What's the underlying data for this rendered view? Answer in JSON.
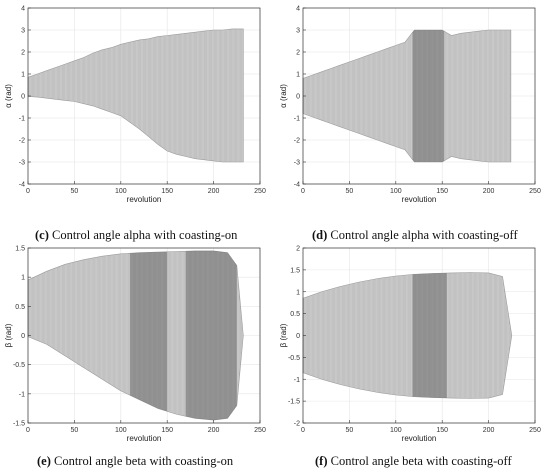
{
  "chart_data": [
    {
      "id": "c",
      "type": "area",
      "xlabel": "revolution",
      "ylabel": "α (rad)",
      "xlim": [
        0,
        250
      ],
      "ylim": [
        -4,
        4
      ],
      "xticks": [
        0,
        50,
        100,
        150,
        200,
        250
      ],
      "yticks": [
        -4,
        -3,
        -2,
        -1,
        0,
        1,
        2,
        3,
        4
      ],
      "caption_tag": "(c)",
      "caption_text": " Control angle alpha with coasting-on",
      "coasting": "on",
      "envelope": {
        "x": [
          0,
          10,
          20,
          30,
          40,
          50,
          60,
          70,
          80,
          90,
          100,
          110,
          120,
          130,
          140,
          150,
          160,
          170,
          180,
          190,
          200,
          210,
          220,
          232
        ],
        "upper": [
          0.85,
          1.0,
          1.15,
          1.3,
          1.45,
          1.6,
          1.75,
          1.95,
          2.1,
          2.2,
          2.35,
          2.45,
          2.55,
          2.6,
          2.7,
          2.75,
          2.8,
          2.85,
          2.9,
          2.95,
          3.0,
          3.0,
          3.05,
          3.05
        ],
        "lower": [
          -0.02,
          -0.05,
          -0.1,
          -0.15,
          -0.2,
          -0.25,
          -0.35,
          -0.45,
          -0.6,
          -0.75,
          -0.9,
          -1.2,
          -1.5,
          -1.85,
          -2.2,
          -2.5,
          -2.65,
          -2.75,
          -2.85,
          -2.9,
          -2.95,
          -3.0,
          -3.0,
          -3.0
        ]
      },
      "bands": []
    },
    {
      "id": "d",
      "type": "area",
      "xlabel": "revolution",
      "ylabel": "α (rad)",
      "xlim": [
        0,
        250
      ],
      "ylim": [
        -4,
        4
      ],
      "xticks": [
        0,
        50,
        100,
        150,
        200,
        250
      ],
      "yticks": [
        -4,
        -3,
        -2,
        -1,
        0,
        1,
        2,
        3,
        4
      ],
      "caption_tag": "(d)",
      "caption_text": " Control angle alpha with coasting-off",
      "coasting": "off",
      "envelope": {
        "x": [
          0,
          10,
          20,
          30,
          40,
          50,
          60,
          70,
          80,
          90,
          100,
          110,
          120,
          130,
          140,
          150,
          160,
          170,
          180,
          190,
          200,
          210,
          224
        ],
        "upper": [
          0.8,
          0.95,
          1.1,
          1.25,
          1.4,
          1.55,
          1.7,
          1.85,
          2.0,
          2.15,
          2.3,
          2.45,
          3.0,
          3.0,
          3.0,
          3.0,
          2.75,
          2.85,
          2.9,
          2.95,
          3.0,
          3.0,
          3.0
        ],
        "lower": [
          -0.8,
          -0.95,
          -1.1,
          -1.25,
          -1.4,
          -1.55,
          -1.7,
          -1.85,
          -2.0,
          -2.15,
          -2.3,
          -2.45,
          -3.0,
          -3.0,
          -3.0,
          -3.0,
          -2.75,
          -2.85,
          -2.9,
          -2.95,
          -3.0,
          -3.0,
          -3.0
        ]
      },
      "bands": [
        [
          118,
          152
        ]
      ]
    },
    {
      "id": "e",
      "type": "area",
      "xlabel": "revolution",
      "ylabel": "β (rad)",
      "xlim": [
        0,
        250
      ],
      "ylim": [
        -1.5,
        1.5
      ],
      "xticks": [
        0,
        50,
        100,
        150,
        200,
        250
      ],
      "yticks": [
        -1.5,
        -1,
        -0.5,
        0,
        0.5,
        1,
        1.5
      ],
      "caption_tag": "(e)",
      "caption_text": " Control angle beta with coasting-on",
      "coasting": "on",
      "envelope": {
        "x": [
          0,
          20,
          40,
          60,
          80,
          100,
          120,
          140,
          160,
          180,
          200,
          215,
          225,
          232
        ],
        "upper": [
          0.95,
          1.1,
          1.22,
          1.3,
          1.36,
          1.4,
          1.42,
          1.43,
          1.44,
          1.45,
          1.45,
          1.42,
          1.2,
          0.0
        ],
        "lower": [
          -0.02,
          -0.15,
          -0.35,
          -0.55,
          -0.75,
          -0.95,
          -1.1,
          -1.25,
          -1.35,
          -1.42,
          -1.45,
          -1.42,
          -1.2,
          0.0
        ]
      },
      "bands": [
        [
          110,
          150
        ],
        [
          170,
          225
        ]
      ]
    },
    {
      "id": "f",
      "type": "area",
      "xlabel": "revolution",
      "ylabel": "β (rad)",
      "xlim": [
        0,
        250
      ],
      "ylim": [
        -2,
        2
      ],
      "xticks": [
        0,
        50,
        100,
        150,
        200,
        250
      ],
      "yticks": [
        -2,
        -1.5,
        -1,
        -0.5,
        0,
        0.5,
        1,
        1.5,
        2
      ],
      "caption_tag": "(f)",
      "caption_text": " Control angle beta with coasting-off",
      "coasting": "off",
      "envelope": {
        "x": [
          0,
          20,
          40,
          60,
          80,
          100,
          120,
          140,
          160,
          180,
          200,
          215,
          225
        ],
        "upper": [
          0.85,
          1.0,
          1.12,
          1.22,
          1.3,
          1.36,
          1.4,
          1.42,
          1.43,
          1.44,
          1.43,
          1.35,
          0.0
        ],
        "lower": [
          -0.85,
          -1.0,
          -1.12,
          -1.22,
          -1.3,
          -1.36,
          -1.4,
          -1.42,
          -1.43,
          -1.44,
          -1.43,
          -1.35,
          0.0
        ]
      },
      "bands": [
        [
          118,
          155
        ]
      ]
    }
  ]
}
